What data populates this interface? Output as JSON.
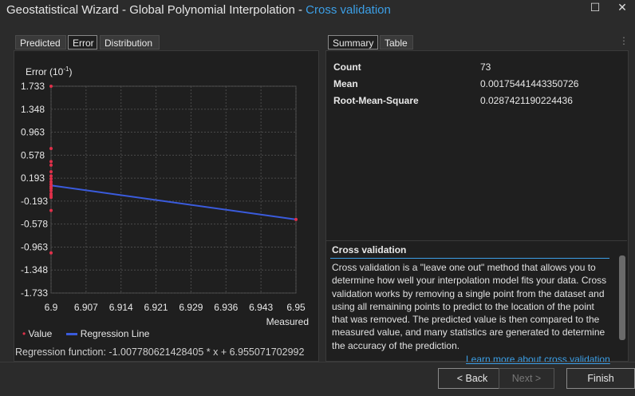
{
  "window": {
    "title": "Geostatistical Wizard - Global Polynomial Interpolation - ",
    "title_accent": "Cross validation",
    "maximize_glyph": "☐",
    "close_glyph": "✕"
  },
  "left_tabs": [
    "Predicted",
    "Error",
    "Distribution"
  ],
  "left_active_tab": "Error",
  "right_tabs": [
    "Summary",
    "Table"
  ],
  "right_active_tab": "Summary",
  "chart_data": {
    "type": "scatter",
    "ylabel_main": "Error (10",
    "ylabel_exp": "-1",
    "ylabel_end": ")",
    "xlabel": "Measured",
    "yticks": [
      "1.733",
      "1.348",
      "0.963",
      "0.578",
      "0.193",
      "-0.193",
      "-0.578",
      "-0.963",
      "-1.348",
      "-1.733"
    ],
    "xticks": [
      "6.9",
      "6.907",
      "6.914",
      "6.921",
      "6.929",
      "6.936",
      "6.943",
      "6.95"
    ],
    "xlim": [
      6.9,
      6.95
    ],
    "ylim": [
      -1.733,
      1.733
    ],
    "points": [
      {
        "x": 6.9,
        "y": 1.733
      },
      {
        "x": 6.9,
        "y": 0.69
      },
      {
        "x": 6.9,
        "y": 0.47
      },
      {
        "x": 6.9,
        "y": 0.41
      },
      {
        "x": 6.9,
        "y": 0.3
      },
      {
        "x": 6.9,
        "y": 0.23
      },
      {
        "x": 6.9,
        "y": 0.18
      },
      {
        "x": 6.9,
        "y": 0.13
      },
      {
        "x": 6.9,
        "y": 0.09
      },
      {
        "x": 6.9,
        "y": 0.05
      },
      {
        "x": 6.9,
        "y": 0.02
      },
      {
        "x": 6.9,
        "y": -0.02
      },
      {
        "x": 6.9,
        "y": -0.07
      },
      {
        "x": 6.9,
        "y": -0.1
      },
      {
        "x": 6.9,
        "y": -0.13
      },
      {
        "x": 6.9,
        "y": -0.35
      },
      {
        "x": 6.9,
        "y": -1.06
      },
      {
        "x": 6.95,
        "y": -0.5
      }
    ],
    "regression_line": [
      {
        "x": 6.9,
        "y": 0.07
      },
      {
        "x": 6.95,
        "y": -0.5
      }
    ],
    "legend": [
      "Value",
      "Regression Line"
    ],
    "colors": {
      "value": "#e0304a",
      "regression": "#3a5bdc",
      "grid": "#4a4a4a"
    }
  },
  "regression_function": "Regression function: -1.007780621428405 * x + 6.955071702992",
  "summary": [
    {
      "label": "Count",
      "value": "73"
    },
    {
      "label": "Mean",
      "value": "0.00175441443350726"
    },
    {
      "label": "Root-Mean-Square",
      "value": "0.0287421190224436"
    }
  ],
  "info": {
    "heading": "Cross validation",
    "text": "Cross validation is a \"leave one out\" method that allows you to determine how well your interpolation model fits your data. Cross validation works by removing a single point from the dataset and using all remaining points to predict to the location of the point that was removed. The predicted value is then compared to the measured value, and many statistics are generated to determine the accuracy of the prediction.",
    "link": "Learn more about cross validation"
  },
  "buttons": {
    "back": "< Back",
    "next": "Next >",
    "finish": "Finish"
  }
}
